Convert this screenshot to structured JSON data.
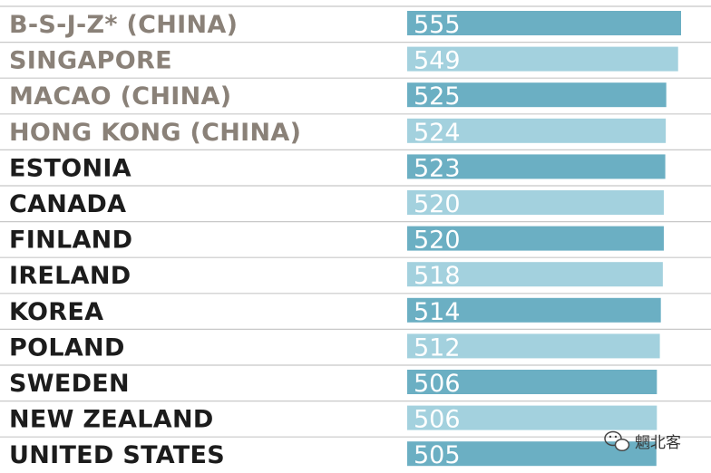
{
  "chart_data": {
    "type": "bar",
    "orientation": "horizontal",
    "categories": [
      "B-S-J-Z* (CHINA)",
      "SINGAPORE",
      "MACAO (CHINA)",
      "HONG KONG (CHINA)",
      "ESTONIA",
      "CANADA",
      "FINLAND",
      "IRELAND",
      "KOREA",
      "POLAND",
      "SWEDEN",
      "NEW ZEALAND",
      "UNITED STATES"
    ],
    "values": [
      555,
      549,
      525,
      524,
      523,
      520,
      520,
      518,
      514,
      512,
      506,
      506,
      505
    ],
    "data_labels": [
      "555",
      "549",
      "525",
      "524",
      "523",
      "520",
      "520",
      "518",
      "514",
      "512",
      "506",
      "506",
      "505"
    ],
    "highlighted": [
      true,
      true,
      true,
      true,
      false,
      false,
      false,
      false,
      false,
      false,
      false,
      false,
      false
    ],
    "xlim": [
      0,
      555
    ],
    "grid": false,
    "title": "",
    "xlabel": "",
    "ylabel": ""
  },
  "colors": {
    "bar_dark": "#6bafc3",
    "bar_light": "#a3d1de",
    "label_highlight": "#8a8178",
    "label_default": "#1c1c1c",
    "separator": "#c8c8c8"
  },
  "watermark": {
    "icon": "wechat-icon",
    "text": "魍北客"
  }
}
